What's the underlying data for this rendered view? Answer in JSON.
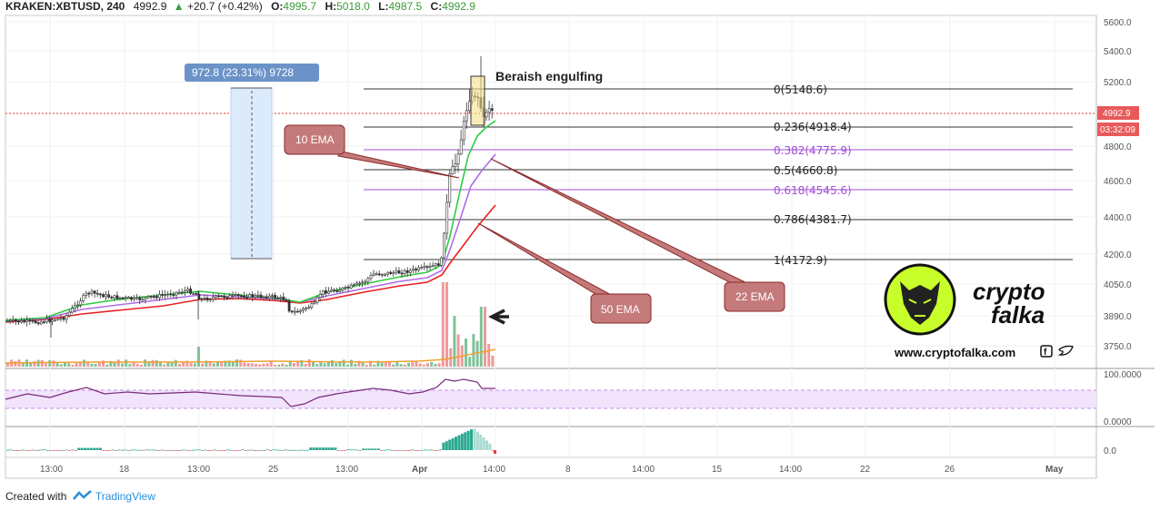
{
  "header": {
    "symbol": "KRAKEN:XBTUSD, 240",
    "last": "4992.9",
    "change": "+20.7 (+0.42%)",
    "o_label": "O:",
    "o": "4995.7",
    "h_label": "H:",
    "h": "5018.0",
    "l_label": "L:",
    "l": "4987.5",
    "c_label": "C:",
    "c": "4992.9"
  },
  "price_axis": {
    "ticks": [
      "5600.0",
      "5400.0",
      "5200.0",
      "4800.0",
      "4600.0",
      "4400.0",
      "4200.0",
      "4050.0",
      "3890.0",
      "3750.0"
    ],
    "price_badge": "4992.9",
    "countdown_badge": "03:32:09"
  },
  "time_axis": {
    "ticks": [
      "13:00",
      "18",
      "13:00",
      "25",
      "13:00",
      "Apr",
      "14:00",
      "8",
      "14:00",
      "15",
      "14:00",
      "22",
      "26",
      "May"
    ]
  },
  "measure_label": "972.8 (23.31%) 9728",
  "fib_levels": [
    {
      "label": "0(5148.6)",
      "ratio": 0,
      "purple": false
    },
    {
      "label": "0.236(4918.4)",
      "ratio": 0.236,
      "purple": false
    },
    {
      "label": "0.382(4775.9)",
      "ratio": 0.382,
      "purple": true
    },
    {
      "label": "0.5(4660.8)",
      "ratio": 0.5,
      "purple": false
    },
    {
      "label": "0.618(4545.6)",
      "ratio": 0.618,
      "purple": true
    },
    {
      "label": "0.786(4381.7)",
      "ratio": 0.786,
      "purple": false
    },
    {
      "label": "1(4172.9)",
      "ratio": 1,
      "purple": false
    }
  ],
  "annotations": {
    "bearish": "Beraish engulfing",
    "ema10": "10 EMA",
    "ema22": "22 EMA",
    "ema50": "50 EMA"
  },
  "rsi_axis": {
    "top": "100.0000",
    "bottom": "0.0000"
  },
  "macd_axis": {
    "zero": "0.0"
  },
  "logo": {
    "line1": "crypto",
    "line2": "falka",
    "url": "www.cryptofalka.com"
  },
  "footer": {
    "created_with": "Created with",
    "brand": "TradingView"
  },
  "colors": {
    "up": "#3c9a5f",
    "down": "#e06666",
    "ema10": "#2ecc40",
    "ema22": "#b06ce8",
    "ema50": "#e82020",
    "badge": "#e85a5a",
    "annot_bg": "#c47a7a",
    "annot_border": "#8b2a2a",
    "fib_purple": "#a14dd6"
  }
}
